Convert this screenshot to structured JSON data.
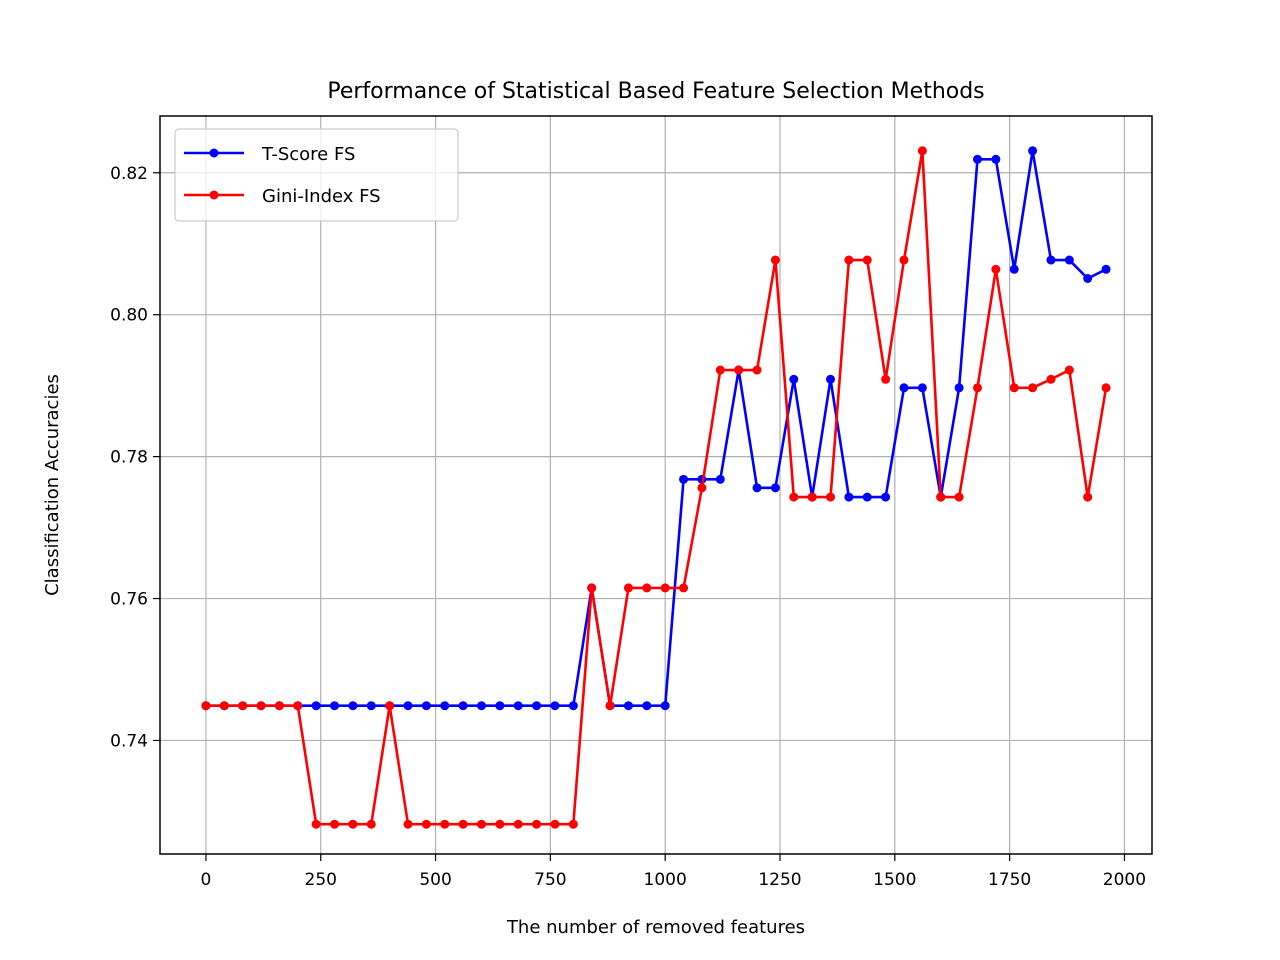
{
  "chart_data": {
    "type": "line",
    "title": "Performance of Statistical Based Feature Selection Methods",
    "xlabel": "The number of removed features",
    "ylabel": "Classification Accuracies",
    "xlim": [
      -100,
      2060
    ],
    "ylim": [
      0.724,
      0.828
    ],
    "xticks": [
      0,
      250,
      500,
      750,
      1000,
      1250,
      1500,
      1750,
      2000
    ],
    "yticks": [
      0.74,
      0.76,
      0.78,
      0.8,
      0.82
    ],
    "xtick_labels": [
      "0",
      "250",
      "500",
      "750",
      "1000",
      "1250",
      "1500",
      "1750",
      "2000"
    ],
    "ytick_labels": [
      "0.74",
      "0.76",
      "0.78",
      "0.80",
      "0.82"
    ],
    "grid": true,
    "legend_position": "top-left",
    "x": [
      0,
      40,
      80,
      120,
      160,
      200,
      240,
      280,
      320,
      360,
      400,
      440,
      480,
      520,
      560,
      600,
      640,
      680,
      720,
      760,
      800,
      840,
      880,
      920,
      960,
      1000,
      1040,
      1080,
      1120,
      1160,
      1200,
      1240,
      1280,
      1320,
      1360,
      1400,
      1440,
      1480,
      1520,
      1560,
      1600,
      1640,
      1680,
      1720,
      1760,
      1800,
      1840,
      1880,
      1920,
      1960
    ],
    "series": [
      {
        "name": "T-Score FS",
        "color": "#0000ff",
        "values": [
          0.7449,
          0.7449,
          0.7449,
          0.7449,
          0.7449,
          0.7449,
          0.7449,
          0.7449,
          0.7449,
          0.7449,
          0.7449,
          0.7449,
          0.7449,
          0.7449,
          0.7449,
          0.7449,
          0.7449,
          0.7449,
          0.7449,
          0.7449,
          0.7449,
          0.7615,
          0.7449,
          0.7449,
          0.7449,
          0.7449,
          0.7768,
          0.7768,
          0.7768,
          0.7922,
          0.7756,
          0.7756,
          0.7909,
          0.7743,
          0.7909,
          0.7743,
          0.7743,
          0.7743,
          0.7897,
          0.7897,
          0.7743,
          0.7897,
          0.8219,
          0.8219,
          0.8064,
          0.8231,
          0.8077,
          0.8077,
          0.8051,
          0.8064
        ]
      },
      {
        "name": "Gini-Index FS",
        "color": "#ff0000",
        "values": [
          0.7449,
          0.7449,
          0.7449,
          0.7449,
          0.7449,
          0.7449,
          0.7282,
          0.7282,
          0.7282,
          0.7282,
          0.7449,
          0.7282,
          0.7282,
          0.7282,
          0.7282,
          0.7282,
          0.7282,
          0.7282,
          0.7282,
          0.7282,
          0.7282,
          0.7615,
          0.7449,
          0.7615,
          0.7615,
          0.7615,
          0.7615,
          0.7756,
          0.7922,
          0.7922,
          0.7922,
          0.8077,
          0.7743,
          0.7743,
          0.7743,
          0.8077,
          0.8077,
          0.7909,
          0.8077,
          0.8231,
          0.7743,
          0.7743,
          0.7897,
          0.8064,
          0.7897,
          0.7897,
          0.7909,
          0.7922,
          0.7743,
          0.7897
        ]
      }
    ]
  }
}
